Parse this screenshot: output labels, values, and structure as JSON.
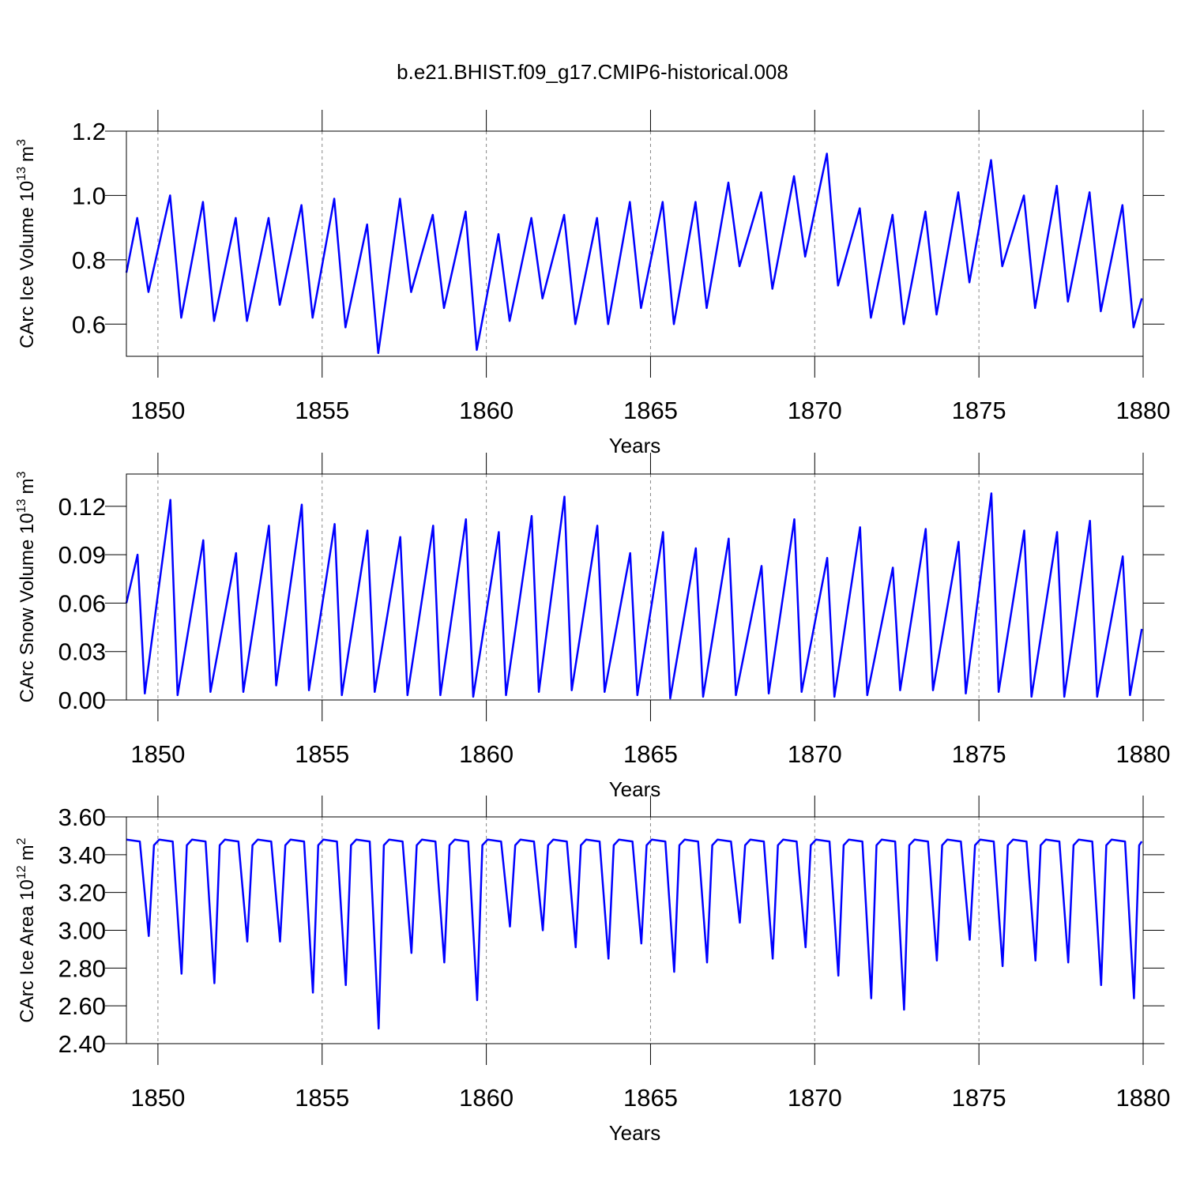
{
  "chart_data": [
    {
      "type": "line",
      "title": "b.e21.BHIST.f09_g17.CMIP6-historical.008",
      "xlabel": "Years",
      "ylabel": {
        "base": "CArc Ice Volume 10",
        "base_exp": "13",
        "unit": "m",
        "unit_exp": "3"
      },
      "xlim": [
        1849.04,
        1880
      ],
      "xticks": [
        1850,
        1855,
        1860,
        1865,
        1870,
        1875,
        1880
      ],
      "ylim": [
        0.5,
        1.2
      ],
      "yticks": [
        0.6,
        0.8,
        {
          "value": 1,
          "label": "1.0"
        },
        1.2
      ],
      "grid": true,
      "series": [
        {
          "color": "#0000ff",
          "x": [
            1849.04,
            1849.37,
            1849.71,
            1850.37,
            1850.71,
            1851.37,
            1851.71,
            1852.37,
            1852.71,
            1853.37,
            1853.71,
            1854.37,
            1854.71,
            1855.37,
            1855.71,
            1856.37,
            1856.71,
            1857.37,
            1857.71,
            1858.37,
            1858.71,
            1859.37,
            1859.71,
            1860.37,
            1860.71,
            1861.37,
            1861.71,
            1862.37,
            1862.71,
            1863.37,
            1863.71,
            1864.37,
            1864.71,
            1865.37,
            1865.71,
            1866.37,
            1866.71,
            1867.37,
            1867.71,
            1868.37,
            1868.71,
            1869.37,
            1869.71,
            1870.37,
            1870.71,
            1871.37,
            1871.71,
            1872.37,
            1872.71,
            1873.37,
            1873.71,
            1874.37,
            1874.71,
            1875.37,
            1875.71,
            1876.37,
            1876.71,
            1877.37,
            1877.71,
            1878.37,
            1878.71,
            1879.37,
            1879.71,
            1879.96
          ],
          "values": [
            0.76,
            0.93,
            0.7,
            1.0,
            0.62,
            0.98,
            0.61,
            0.93,
            0.61,
            0.93,
            0.66,
            0.97,
            0.62,
            0.99,
            0.59,
            0.91,
            0.51,
            0.99,
            0.7,
            0.94,
            0.65,
            0.95,
            0.52,
            0.88,
            0.61,
            0.93,
            0.68,
            0.94,
            0.6,
            0.93,
            0.6,
            0.98,
            0.65,
            0.98,
            0.6,
            0.98,
            0.65,
            1.04,
            0.78,
            1.01,
            0.71,
            1.06,
            0.81,
            1.13,
            0.72,
            0.96,
            0.62,
            0.94,
            0.6,
            0.95,
            0.63,
            1.01,
            0.73,
            1.11,
            0.78,
            1.0,
            0.65,
            1.03,
            0.67,
            1.01,
            0.64,
            0.97,
            0.59,
            0.68
          ]
        }
      ]
    },
    {
      "type": "line",
      "xlabel": "Years",
      "ylabel": {
        "base": "CArc Snow Volume 10",
        "base_exp": "13",
        "unit": "m",
        "unit_exp": "3"
      },
      "xlim": [
        1849.04,
        1880
      ],
      "xticks": [
        1850,
        1855,
        1860,
        1865,
        1870,
        1875,
        1880
      ],
      "ylim": [
        0,
        0.14
      ],
      "yticks": [
        {
          "value": 0,
          "label": "0.00"
        },
        {
          "value": 0.03,
          "label": "0.03"
        },
        {
          "value": 0.06,
          "label": "0.06"
        },
        {
          "value": 0.09,
          "label": "0.09"
        },
        {
          "value": 0.12,
          "label": "0.12"
        }
      ],
      "grid": true,
      "series": [
        {
          "color": "#0000ff",
          "x": [
            1849.04,
            1849.38,
            1849.6,
            1850.38,
            1850.6,
            1851.38,
            1851.6,
            1852.38,
            1852.6,
            1853.38,
            1853.6,
            1854.38,
            1854.6,
            1855.38,
            1855.6,
            1856.38,
            1856.6,
            1857.38,
            1857.6,
            1858.38,
            1858.6,
            1859.38,
            1859.6,
            1860.38,
            1860.6,
            1861.38,
            1861.6,
            1862.38,
            1862.6,
            1863.38,
            1863.6,
            1864.38,
            1864.6,
            1865.38,
            1865.6,
            1866.38,
            1866.6,
            1867.38,
            1867.6,
            1868.38,
            1868.6,
            1869.38,
            1869.6,
            1870.38,
            1870.6,
            1871.38,
            1871.6,
            1872.38,
            1872.6,
            1873.38,
            1873.6,
            1874.38,
            1874.6,
            1875.38,
            1875.6,
            1876.38,
            1876.6,
            1877.38,
            1877.6,
            1878.38,
            1878.6,
            1879.38,
            1879.6,
            1879.96
          ],
          "values": [
            0.06,
            0.09,
            0.004,
            0.124,
            0.003,
            0.099,
            0.005,
            0.091,
            0.005,
            0.108,
            0.009,
            0.121,
            0.006,
            0.109,
            0.003,
            0.105,
            0.005,
            0.101,
            0.003,
            0.108,
            0.003,
            0.112,
            0.002,
            0.104,
            0.003,
            0.114,
            0.005,
            0.126,
            0.006,
            0.108,
            0.005,
            0.091,
            0.003,
            0.104,
            0.001,
            0.094,
            0.002,
            0.1,
            0.003,
            0.083,
            0.004,
            0.112,
            0.005,
            0.088,
            0.002,
            0.107,
            0.003,
            0.082,
            0.006,
            0.106,
            0.006,
            0.098,
            0.004,
            0.128,
            0.005,
            0.105,
            0.002,
            0.104,
            0.002,
            0.111,
            0.002,
            0.089,
            0.003,
            0.044
          ]
        }
      ]
    },
    {
      "type": "line",
      "xlabel": "Years",
      "ylabel": {
        "base": "CArc Ice Area 10",
        "base_exp": "12",
        "unit": "m",
        "unit_exp": "2"
      },
      "xlim": [
        1849.04,
        1880
      ],
      "xticks": [
        1850,
        1855,
        1860,
        1865,
        1870,
        1875,
        1880
      ],
      "ylim": [
        2.4,
        3.6
      ],
      "yticks": [
        {
          "value": 2.4,
          "label": "2.40"
        },
        {
          "value": 2.6,
          "label": "2.60"
        },
        {
          "value": 2.8,
          "label": "2.80"
        },
        {
          "value": 3,
          "label": "3.00"
        },
        {
          "value": 3.2,
          "label": "3.20"
        },
        {
          "value": 3.4,
          "label": "3.40"
        },
        {
          "value": 3.6,
          "label": "3.60"
        }
      ],
      "grid": true,
      "series": [
        {
          "color": "#0000ff",
          "x": [
            1849.04,
            1849.45,
            1849.72,
            1849.88,
            1850.04,
            1850.45,
            1850.72,
            1850.88,
            1851.04,
            1851.45,
            1851.72,
            1851.88,
            1852.04,
            1852.45,
            1852.72,
            1852.88,
            1853.04,
            1853.45,
            1853.72,
            1853.88,
            1854.04,
            1854.45,
            1854.72,
            1854.88,
            1855.04,
            1855.45,
            1855.72,
            1855.88,
            1856.04,
            1856.45,
            1856.72,
            1856.88,
            1857.04,
            1857.45,
            1857.72,
            1857.88,
            1858.04,
            1858.45,
            1858.72,
            1858.88,
            1859.04,
            1859.45,
            1859.72,
            1859.88,
            1860.04,
            1860.45,
            1860.72,
            1860.88,
            1861.04,
            1861.45,
            1861.72,
            1861.88,
            1862.04,
            1862.45,
            1862.72,
            1862.88,
            1863.04,
            1863.45,
            1863.72,
            1863.88,
            1864.04,
            1864.45,
            1864.72,
            1864.88,
            1865.04,
            1865.45,
            1865.72,
            1865.88,
            1866.04,
            1866.45,
            1866.72,
            1866.88,
            1867.04,
            1867.45,
            1867.72,
            1867.88,
            1868.04,
            1868.45,
            1868.72,
            1868.88,
            1869.04,
            1869.45,
            1869.72,
            1869.88,
            1870.04,
            1870.45,
            1870.72,
            1870.88,
            1871.04,
            1871.45,
            1871.72,
            1871.88,
            1872.04,
            1872.45,
            1872.72,
            1872.88,
            1873.04,
            1873.45,
            1873.72,
            1873.88,
            1874.04,
            1874.45,
            1874.72,
            1874.88,
            1875.04,
            1875.45,
            1875.72,
            1875.88,
            1876.04,
            1876.45,
            1876.72,
            1876.88,
            1877.04,
            1877.45,
            1877.72,
            1877.88,
            1878.04,
            1878.45,
            1878.72,
            1878.88,
            1879.04,
            1879.45,
            1879.72,
            1879.88,
            1879.96
          ],
          "values": [
            3.48,
            3.47,
            2.97,
            3.45,
            3.48,
            3.47,
            2.77,
            3.45,
            3.48,
            3.47,
            2.72,
            3.45,
            3.48,
            3.47,
            2.94,
            3.45,
            3.48,
            3.47,
            2.94,
            3.45,
            3.48,
            3.47,
            2.67,
            3.45,
            3.48,
            3.47,
            2.71,
            3.45,
            3.48,
            3.47,
            2.48,
            3.45,
            3.48,
            3.47,
            2.88,
            3.45,
            3.48,
            3.47,
            2.83,
            3.45,
            3.48,
            3.47,
            2.63,
            3.45,
            3.48,
            3.47,
            3.02,
            3.45,
            3.48,
            3.47,
            3.0,
            3.45,
            3.48,
            3.47,
            2.91,
            3.45,
            3.48,
            3.47,
            2.85,
            3.45,
            3.48,
            3.47,
            2.93,
            3.45,
            3.48,
            3.47,
            2.78,
            3.45,
            3.48,
            3.47,
            2.83,
            3.45,
            3.48,
            3.47,
            3.04,
            3.45,
            3.48,
            3.47,
            2.85,
            3.45,
            3.48,
            3.47,
            2.91,
            3.45,
            3.48,
            3.47,
            2.76,
            3.45,
            3.48,
            3.47,
            2.64,
            3.45,
            3.48,
            3.47,
            2.58,
            3.45,
            3.48,
            3.47,
            2.84,
            3.45,
            3.48,
            3.47,
            2.95,
            3.45,
            3.48,
            3.47,
            2.81,
            3.45,
            3.48,
            3.47,
            2.84,
            3.45,
            3.48,
            3.47,
            2.83,
            3.45,
            3.48,
            3.47,
            2.71,
            3.45,
            3.48,
            3.47,
            2.64,
            3.45,
            3.47
          ]
        }
      ]
    }
  ]
}
